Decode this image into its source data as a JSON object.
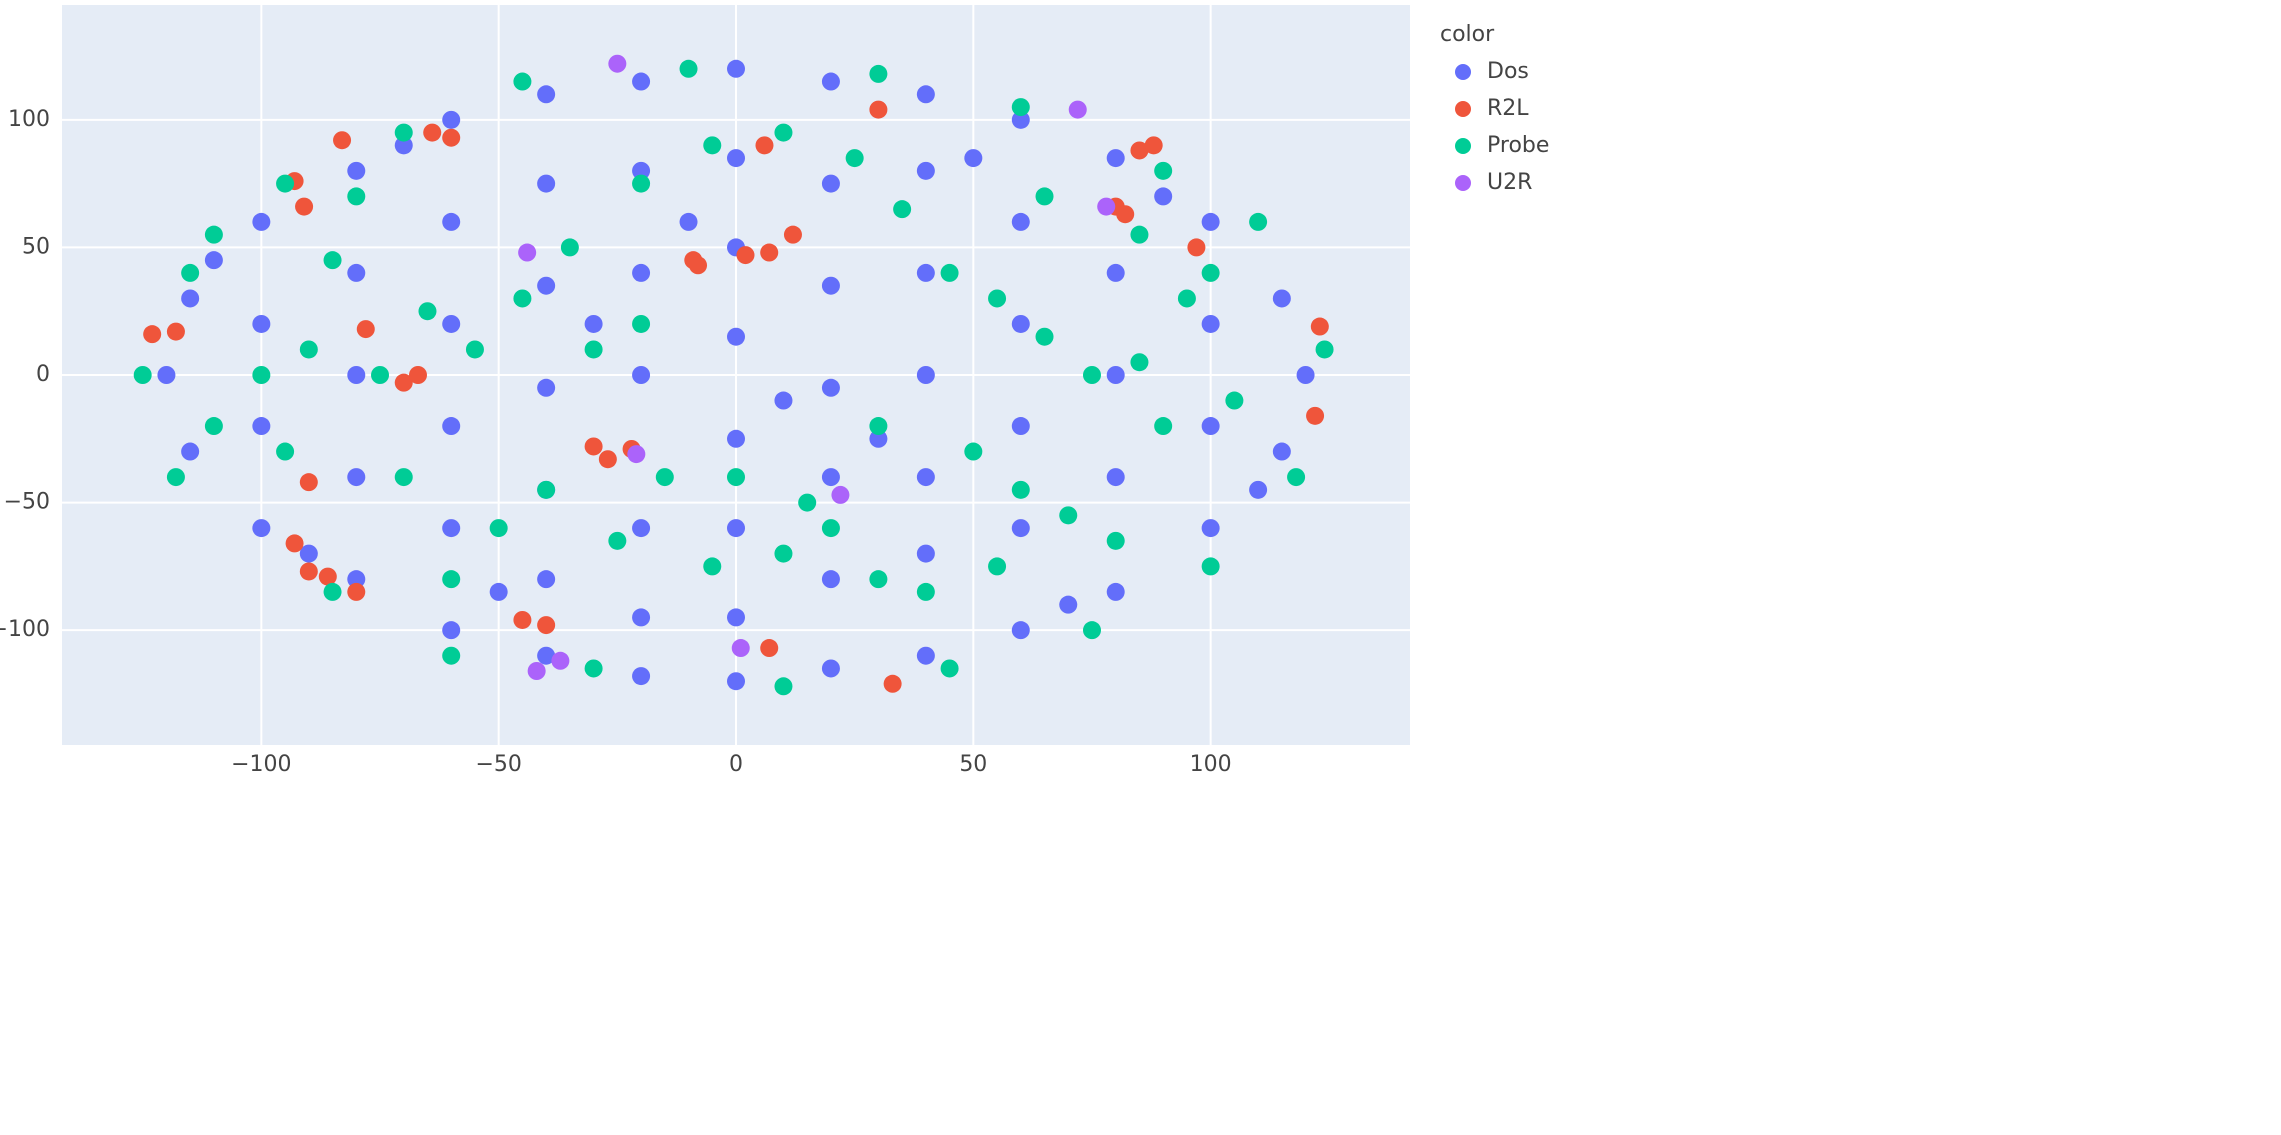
{
  "chart_data": {
    "type": "scatter",
    "legend_title": "color",
    "xlim": [
      -142,
      142
    ],
    "ylim": [
      -145,
      145
    ],
    "xticks": [
      {
        "value": -100,
        "label": "−100"
      },
      {
        "value": -50,
        "label": "−50"
      },
      0,
      50,
      100
    ],
    "yticks": [
      {
        "value": -100,
        "label": "−100"
      },
      {
        "value": -50,
        "label": "−50"
      },
      0,
      50,
      100
    ],
    "grid": true,
    "legend": "right",
    "series": [
      {
        "name": "Dos",
        "color": "#636efa",
        "x": [
          -120,
          -115,
          -115,
          -100,
          -100,
          -100,
          -100,
          -80,
          -80,
          -80,
          -80,
          -80,
          -60,
          -60,
          -60,
          -60,
          -60,
          -60,
          -40,
          -40,
          -40,
          -40,
          -40,
          -40,
          -40,
          -20,
          -20,
          -20,
          -20,
          -20,
          -20,
          -20,
          0,
          0,
          0,
          0,
          0,
          0,
          0,
          0,
          20,
          20,
          20,
          20,
          20,
          20,
          20,
          40,
          40,
          40,
          40,
          40,
          40,
          40,
          60,
          60,
          60,
          60,
          60,
          60,
          80,
          80,
          80,
          80,
          80,
          100,
          100,
          100,
          100,
          115,
          115,
          120,
          -110,
          110,
          -90,
          90,
          -10,
          10,
          30,
          -30,
          50,
          -50,
          70,
          -70
        ],
        "values": [
          0,
          30,
          -30,
          60,
          -60,
          20,
          -20,
          80,
          -80,
          40,
          0,
          -40,
          100,
          -100,
          60,
          20,
          -20,
          -60,
          110,
          -110,
          75,
          35,
          -5,
          -45,
          -80,
          115,
          -118,
          80,
          40,
          0,
          -60,
          -95,
          120,
          -120,
          85,
          50,
          15,
          -25,
          -60,
          -95,
          115,
          -115,
          75,
          35,
          -5,
          -40,
          -80,
          110,
          -110,
          80,
          40,
          0,
          -40,
          -70,
          100,
          -100,
          60,
          20,
          -20,
          -60,
          85,
          -85,
          40,
          0,
          -40,
          60,
          -60,
          20,
          -20,
          30,
          -30,
          0,
          45,
          -45,
          -70,
          70,
          60,
          -10,
          -25,
          20,
          85,
          -85,
          -90,
          90
        ]
      },
      {
        "name": "R2L",
        "color": "#EF553B",
        "x": [
          -123,
          -118,
          -83,
          -64,
          -60,
          -78,
          -70,
          -67,
          -90,
          -93,
          -90,
          -86,
          -80,
          -45,
          -40,
          -30,
          -27,
          -22,
          -9,
          -8,
          2,
          7,
          12,
          6,
          30,
          80,
          82,
          85,
          88,
          97,
          123,
          122,
          33,
          7,
          -91,
          -93
        ],
        "values": [
          16,
          17,
          92,
          95,
          93,
          18,
          -3,
          0,
          -42,
          -66,
          -77,
          -79,
          -85,
          -96,
          -98,
          -28,
          -33,
          -29,
          45,
          43,
          47,
          48,
          55,
          90,
          104,
          66,
          63,
          88,
          90,
          50,
          19,
          -16,
          -121,
          -107,
          66,
          76
        ]
      },
      {
        "name": "Probe",
        "color": "#00cc96",
        "x": [
          -125,
          -118,
          -110,
          -95,
          -85,
          -70,
          -60,
          -45,
          -30,
          -10,
          10,
          30,
          45,
          60,
          75,
          90,
          100,
          110,
          118,
          124,
          -115,
          -85,
          -75,
          -65,
          -55,
          -45,
          -35,
          -20,
          -15,
          -25,
          -40,
          -5,
          10,
          25,
          35,
          45,
          55,
          65,
          75,
          85,
          95,
          100,
          85,
          50,
          60,
          70,
          80,
          40,
          30,
          20,
          10,
          -5,
          -50,
          -70,
          -95,
          -100,
          -90,
          -30,
          -20,
          0,
          15,
          30,
          55,
          -60,
          -110,
          105,
          -80,
          65,
          90
        ],
        "values": [
          0,
          -40,
          55,
          75,
          -85,
          95,
          -110,
          115,
          -115,
          120,
          -122,
          118,
          -115,
          105,
          -100,
          80,
          -75,
          60,
          -40,
          10,
          40,
          45,
          0,
          25,
          10,
          30,
          50,
          75,
          -40,
          -65,
          -45,
          90,
          95,
          85,
          65,
          40,
          30,
          15,
          0,
          5,
          30,
          40,
          55,
          -30,
          -45,
          -55,
          -65,
          -85,
          -80,
          -60,
          -70,
          -75,
          -60,
          -40,
          -30,
          0,
          10,
          10,
          20,
          -40,
          -50,
          -20,
          -75,
          -80,
          -20,
          -10,
          70,
          70,
          -20
        ]
      },
      {
        "name": "U2R",
        "color": "#ab63fa",
        "x": [
          -25,
          72,
          78,
          -42,
          -37,
          22,
          1,
          -21,
          -44
        ],
        "values": [
          122,
          104,
          66,
          -116,
          -112,
          -47,
          -107,
          -31,
          48
        ]
      }
    ]
  }
}
